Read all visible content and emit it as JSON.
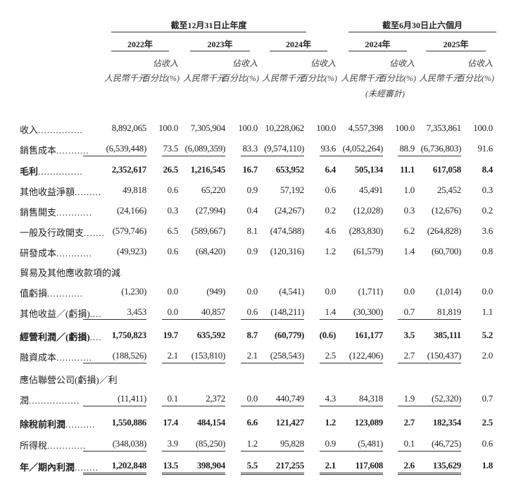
{
  "header": {
    "group_annual": "截至12月31日止年度",
    "group_interim": "截至6月30日止六個月",
    "periods": [
      "2022年",
      "2023年",
      "2024年",
      "2024年",
      "2025年"
    ],
    "pct_label_top": "佔收入",
    "amount_label": "人民幣千元",
    "pct_label": "百分比(%)",
    "unaudited_note": "(未經審計)"
  },
  "rows": [
    {
      "label": "收入",
      "dots": "...............",
      "bold": false,
      "underline": "",
      "values": [
        "8,892,065",
        "100.0",
        "7,305,904",
        "100.0",
        "10,228,062",
        "100.0",
        "4,557,398",
        "100.0",
        "7,353,861",
        "100.0"
      ]
    },
    {
      "label": "銷售成本",
      "dots": "...........",
      "bold": false,
      "underline": "single",
      "values": [
        "(6,539,448)",
        "73.5",
        "(6,089,359)",
        "83.3",
        "(9,574,110)",
        "93.6",
        "(4,052,264)",
        "88.9",
        "(6,736,803)",
        "91.6"
      ]
    },
    {
      "label": "毛利",
      "dots": "...............",
      "bold": true,
      "underline": "",
      "values": [
        "2,352,617",
        "26.5",
        "1,216,545",
        "16.7",
        "653,952",
        "6.4",
        "505,134",
        "11.1",
        "617,058",
        "8.4"
      ]
    },
    {
      "label": "其他收益淨額",
      "dots": ".........",
      "bold": false,
      "underline": "",
      "values": [
        "49,818",
        "0.6",
        "65,220",
        "0.9",
        "57,192",
        "0.6",
        "45,491",
        "1.0",
        "25,452",
        "0.3"
      ]
    },
    {
      "label": "銷售開支",
      "dots": "............",
      "bold": false,
      "underline": "",
      "values": [
        "(24,166)",
        "0.3",
        "(27,994)",
        "0.4",
        "(24,267)",
        "0.2",
        "(12,028)",
        "0.3",
        "(12,676)",
        "0.2"
      ]
    },
    {
      "label": "一般及行政開支",
      "dots": ".......",
      "bold": false,
      "underline": "",
      "values": [
        "(579,746)",
        "6.5",
        "(589,667)",
        "8.1",
        "(474,588)",
        "4.6",
        "(283,830)",
        "6.2",
        "(264,828)",
        "3.6"
      ]
    },
    {
      "label": "研發成本",
      "dots": "............",
      "bold": false,
      "underline": "",
      "values": [
        "(49,923)",
        "0.6",
        "(68,420)",
        "0.9",
        "(120,316)",
        "1.2",
        "(61,579)",
        "1.4",
        "(60,700)",
        "0.8"
      ]
    },
    {
      "label_line1": "貿易及其他應收款項的減",
      "label": "值虧損",
      "dots": "............",
      "bold": false,
      "underline": "",
      "values": [
        "(1,230)",
        "0.0",
        "(949)",
        "0.0",
        "(4,541)",
        "0.0",
        "(1,711)",
        "0.0",
        "(1,014)",
        "0.0"
      ]
    },
    {
      "label": "其他收益／(虧損)",
      "dots": "....",
      "bold": false,
      "underline": "single",
      "values": [
        "3,453",
        "0.0",
        "40,857",
        "0.6",
        "(148,211)",
        "1.4",
        "(30,300)",
        "0.7",
        "81,819",
        "1.1"
      ]
    },
    {
      "label": "經營利潤／(虧損)",
      "dots": "....",
      "bold": true,
      "underline": "",
      "values": [
        "1,750,823",
        "19.7",
        "635,592",
        "8.7",
        "(60,779)",
        "(0.6)",
        "161,177",
        "3.5",
        "385,111",
        "5.2"
      ]
    },
    {
      "label": "融資成本",
      "dots": "............",
      "bold": false,
      "underline": "single",
      "values": [
        "(188,526)",
        "2.1",
        "(153,810)",
        "2.1",
        "(258,543)",
        "2.5",
        "(122,406)",
        "2.7",
        "(150,437)",
        "2.0"
      ]
    },
    {
      "label_line1": "應佔聯營公司(虧損)／利",
      "label": "潤",
      "dots": ".................",
      "bold": false,
      "underline": "single",
      "values": [
        "(11,411)",
        "0.1",
        "2,372",
        "0.0",
        "440,749",
        "4.3",
        "84,318",
        "1.9",
        "(52,320)",
        "0.7"
      ]
    },
    {
      "label": "除稅前利潤",
      "dots": "..........",
      "bold": true,
      "underline": "",
      "values": [
        "1,550,886",
        "17.4",
        "484,154",
        "6.6",
        "121,427",
        "1.2",
        "123,089",
        "2.7",
        "182,354",
        "2.5"
      ]
    },
    {
      "label": "所得稅",
      "dots": ".............",
      "bold": false,
      "underline": "single",
      "values": [
        "(348,038)",
        "3.9",
        "(85,250)",
        "1.2",
        "95,828",
        "0.9",
        "(5,481)",
        "0.1",
        "(46,725)",
        "0.6"
      ]
    },
    {
      "label": "年／期內利潤",
      "dots": "........",
      "bold": true,
      "underline": "double",
      "values": [
        "1,202,848",
        "13.5",
        "398,904",
        "5.5",
        "217,255",
        "2.1",
        "117,608",
        "2.6",
        "135,629",
        "1.8"
      ]
    }
  ]
}
